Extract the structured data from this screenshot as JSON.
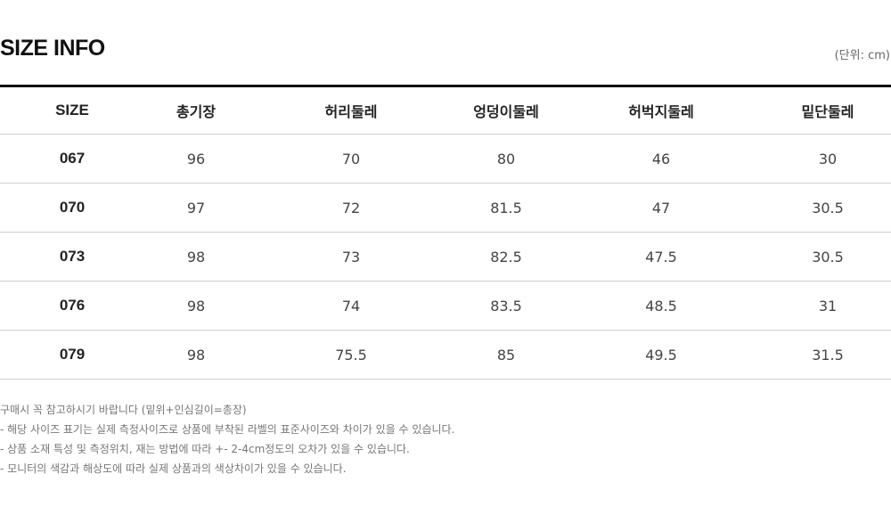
{
  "title": "SIZE INFO",
  "unit": "(단위: cm)",
  "table": {
    "headers": [
      "SIZE",
      "총기장",
      "허리둘레",
      "엉덩이둘레",
      "허벅지둘레",
      "밑단둘레"
    ],
    "rows": [
      [
        "067",
        "96",
        "70",
        "80",
        "46",
        "30"
      ],
      [
        "070",
        "97",
        "72",
        "81.5",
        "47",
        "30.5"
      ],
      [
        "073",
        "98",
        "73",
        "82.5",
        "47.5",
        "30.5"
      ],
      [
        "076",
        "98",
        "74",
        "83.5",
        "48.5",
        "31"
      ],
      [
        "079",
        "98",
        "75.5",
        "85",
        "49.5",
        "31.5"
      ]
    ]
  },
  "notes": [
    "구매시 꼭 참고하시기 바랍니다 (밑위+인심길이=총장)",
    "- 해당 사이즈 표기는 실제 측정사이즈로 상품에 부착된 라벨의 표준사이즈와 차이가 있을 수 있습니다.",
    "- 상품 소재 특성 및 측정위치, 재는 방법에 따라 +- 2-4cm정도의 오차가 있을 수 있습니다.",
    "- 모니터의 색감과 해상도에 따라 실제 상품과의 색상차이가 있을 수 있습니다."
  ]
}
